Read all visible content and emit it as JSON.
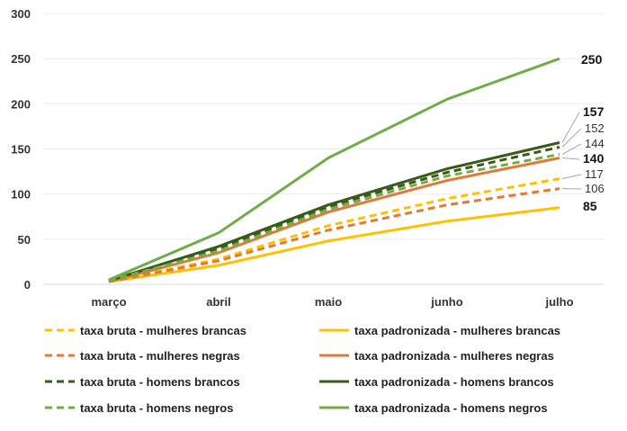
{
  "chart_data": {
    "type": "line",
    "categories": [
      "março",
      "abril",
      "maio",
      "junho",
      "julho"
    ],
    "ylim": [
      0,
      300
    ],
    "yticks": [
      0,
      50,
      100,
      150,
      200,
      250,
      300
    ],
    "grid": true,
    "legend_position": "bottom",
    "series": [
      {
        "name": "taxa bruta - mulheres brancas",
        "color": "#ffc000",
        "style": "dashed",
        "values": [
          3,
          28,
          65,
          95,
          117
        ],
        "end_label": "117",
        "end_bold": false
      },
      {
        "name": "taxa padronizada - mulheres brancas",
        "color": "#ffc000",
        "style": "solid",
        "values": [
          3,
          21,
          48,
          70,
          85
        ],
        "end_label": "85",
        "end_bold": true
      },
      {
        "name": "taxa bruta - mulheres negras",
        "color": "#e07a36",
        "style": "dashed",
        "values": [
          3,
          26,
          60,
          88,
          106
        ],
        "end_label": "106",
        "end_bold": false
      },
      {
        "name": "taxa padronizada - mulheres negras",
        "color": "#e07a36",
        "style": "solid",
        "values": [
          3,
          35,
          80,
          115,
          140
        ],
        "end_label": "140",
        "end_bold": true
      },
      {
        "name": "taxa bruta - homens brancos",
        "color": "#3a5a1a",
        "style": "dashed",
        "values": [
          4,
          40,
          86,
          124,
          152
        ],
        "end_label": "152",
        "end_bold": false
      },
      {
        "name": "taxa padronizada - homens brancos",
        "color": "#3a5a1a",
        "style": "solid",
        "values": [
          4,
          42,
          88,
          128,
          157
        ],
        "end_label": "157",
        "end_bold": true
      },
      {
        "name": "taxa bruta - homens negros",
        "color": "#70ad47",
        "style": "dashed",
        "values": [
          4,
          37,
          83,
          120,
          144
        ],
        "end_label": "144",
        "end_bold": false
      },
      {
        "name": "taxa padronizada - homens negros",
        "color": "#70ad47",
        "style": "solid",
        "values": [
          5,
          57,
          140,
          205,
          250
        ],
        "end_label": "250",
        "end_bold": true
      }
    ]
  }
}
